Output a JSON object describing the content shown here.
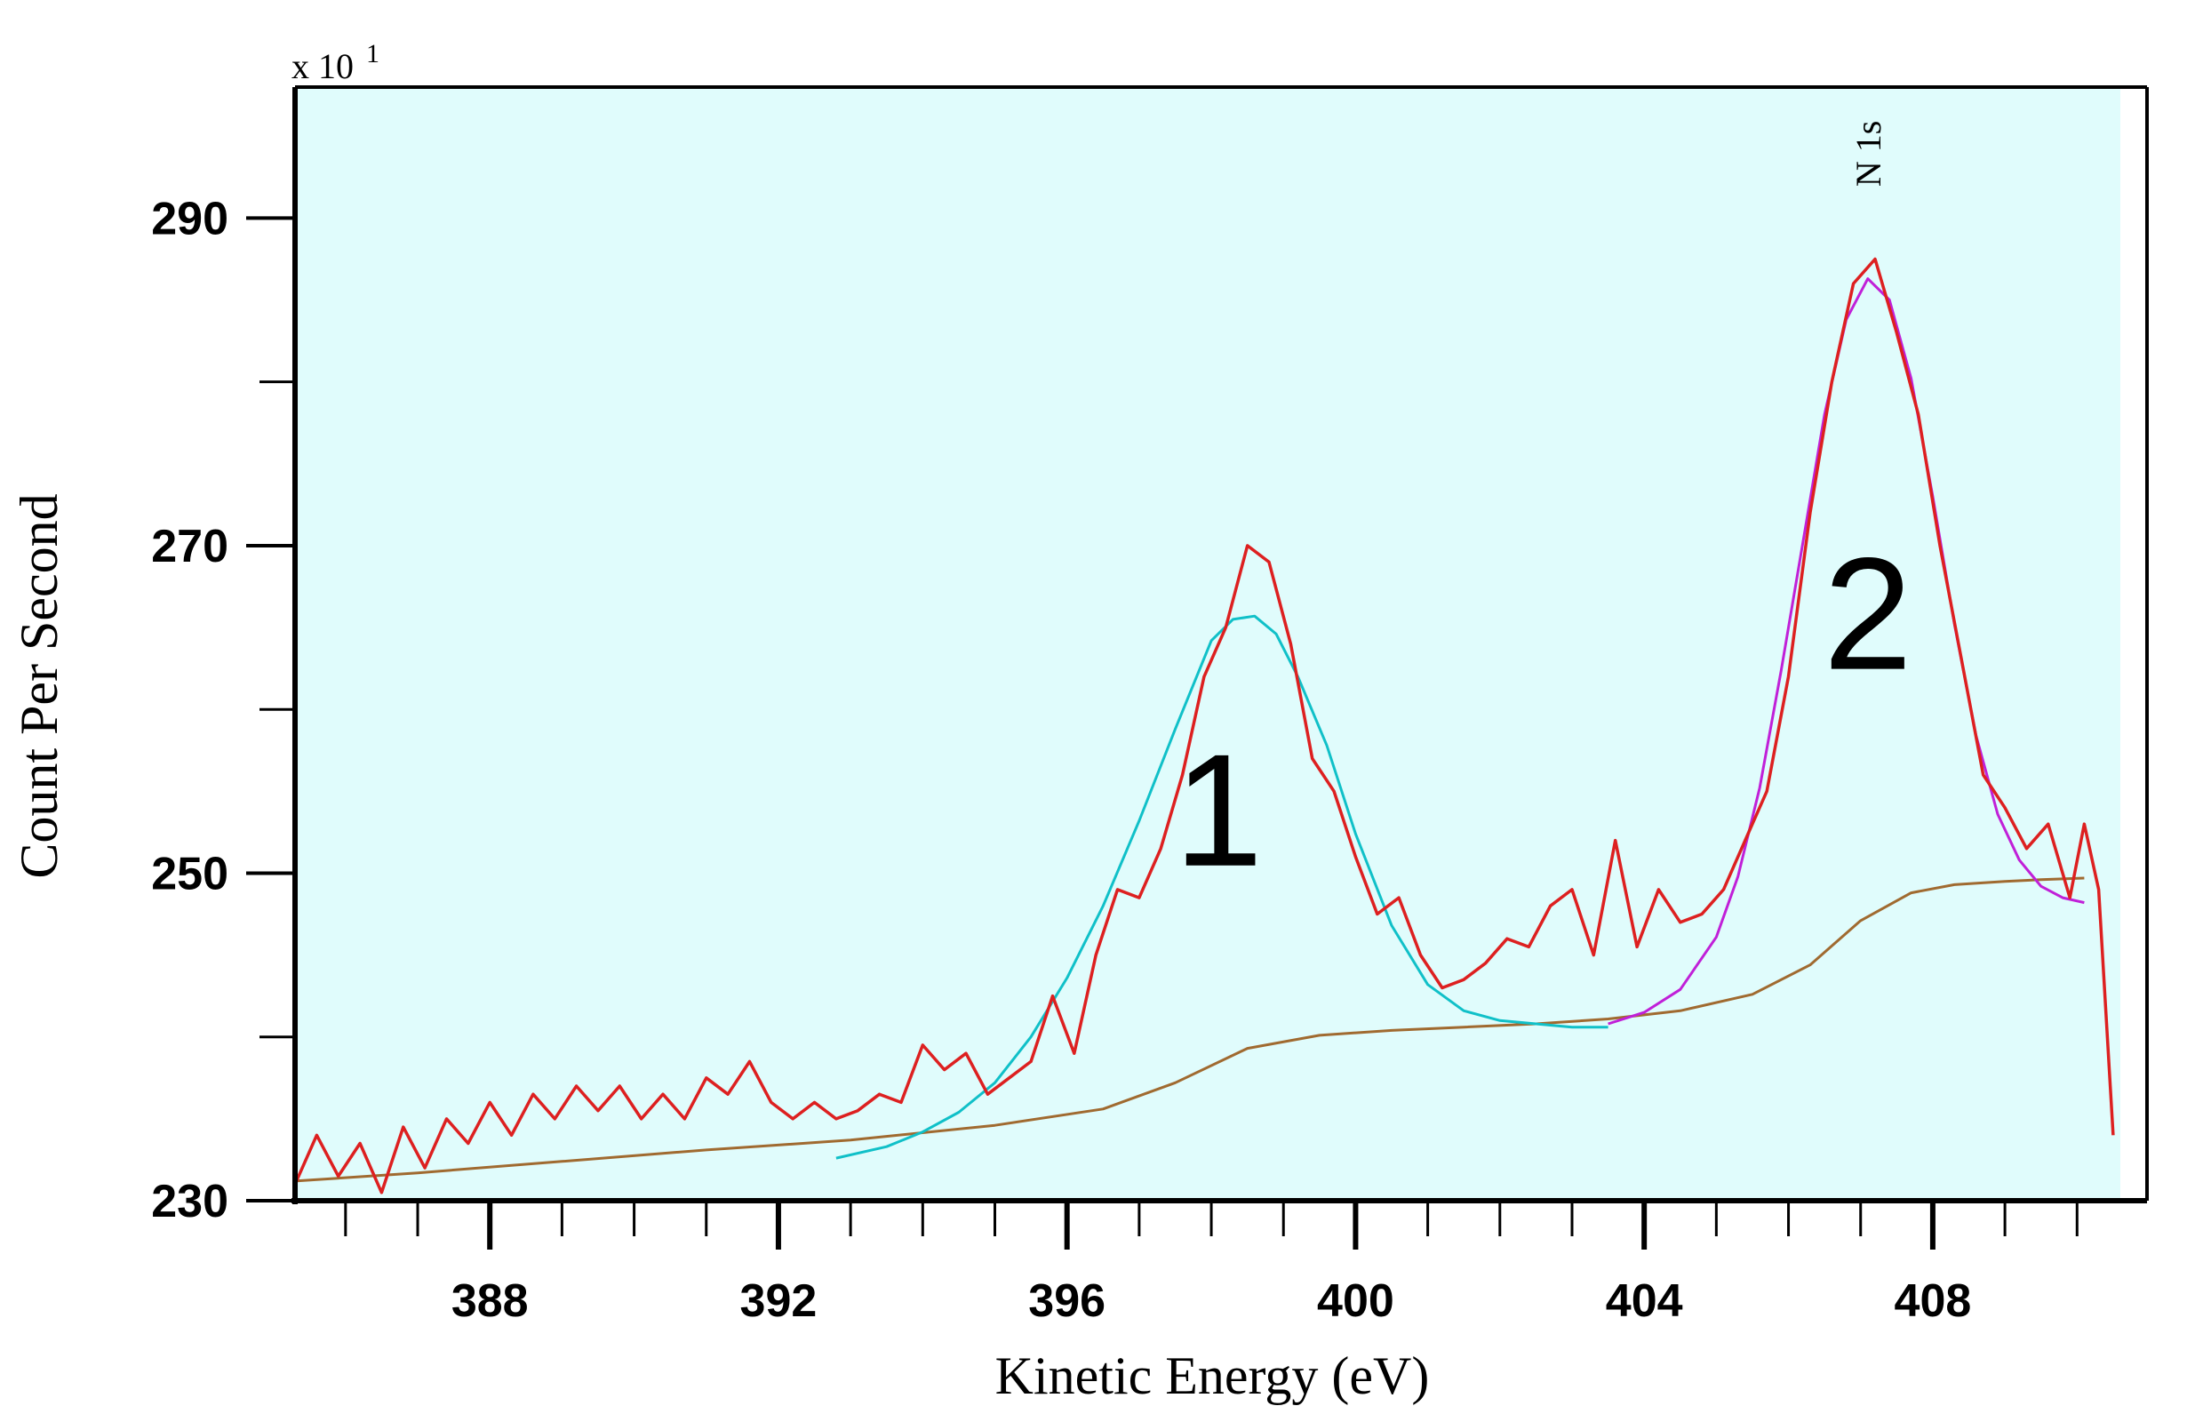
{
  "chart_data": {
    "type": "line",
    "xlabel": "Kinetic Energy (eV)",
    "ylabel": "Count Per Second",
    "y_scale_label": "x 10",
    "y_scale_exponent": "1",
    "xlim": [
      385.3,
      410.6
    ],
    "ylim": [
      230,
      298
    ],
    "x_ticks": [
      388,
      392,
      396,
      400,
      404,
      408
    ],
    "x_tick_labels": [
      "388",
      "392",
      "396",
      "400",
      "404",
      "408"
    ],
    "y_ticks": [
      230,
      250,
      270,
      290
    ],
    "y_tick_labels": [
      "230",
      "250",
      "270",
      "290"
    ],
    "grid": false,
    "background": "#e0fcfc",
    "annotations": [
      {
        "text": "1",
        "x": 398.1,
        "y": 254
      },
      {
        "text": "2",
        "x": 407.1,
        "y": 266
      },
      {
        "text": "N 1s",
        "x": 407.1,
        "y": 293
      }
    ],
    "series": [
      {
        "color": "#dd2020",
        "x": [
          385.3,
          385.6,
          385.9,
          386.2,
          386.5,
          386.8,
          387.1,
          387.4,
          387.7,
          388.0,
          388.3,
          388.6,
          388.9,
          389.2,
          389.5,
          389.8,
          390.1,
          390.4,
          390.7,
          391.0,
          391.3,
          391.6,
          391.9,
          392.2,
          392.5,
          392.8,
          393.1,
          393.4,
          393.7,
          394.0,
          394.3,
          394.6,
          394.9,
          395.2,
          395.5,
          395.8,
          396.1,
          396.4,
          396.7,
          397.0,
          397.3,
          397.6,
          397.9,
          398.2,
          398.5,
          398.8,
          399.1,
          399.4,
          399.7,
          400.0,
          400.3,
          400.6,
          400.9,
          401.2,
          401.5,
          401.8,
          402.1,
          402.4,
          402.7,
          403.0,
          403.3,
          403.6,
          403.9,
          404.2,
          404.5,
          404.8,
          405.1,
          405.4,
          405.7,
          406.0,
          406.3,
          406.6,
          406.9,
          407.2,
          407.5,
          407.8,
          408.1,
          408.4,
          408.7,
          409.0,
          409.3,
          409.6,
          409.9,
          410.1,
          410.3,
          410.5
        ],
        "y": [
          231,
          234,
          231.5,
          233.5,
          230.5,
          234.5,
          232,
          235,
          233.5,
          236,
          234,
          236.5,
          235,
          237,
          235.5,
          237,
          235,
          236.5,
          235,
          237.5,
          236.5,
          238.5,
          236,
          235,
          236,
          235,
          235.5,
          236.5,
          236,
          239.5,
          238,
          239,
          236.5,
          237.5,
          238.5,
          242.5,
          239,
          245,
          249,
          248.5,
          251.5,
          256,
          262,
          265,
          270,
          269,
          264,
          257,
          255,
          251,
          247.5,
          248.5,
          245,
          243,
          243.5,
          244.5,
          246,
          245.5,
          248,
          249,
          245,
          252,
          245.5,
          249,
          247,
          247.5,
          249,
          252,
          255,
          262,
          272,
          280,
          286,
          287.5,
          283,
          278,
          270,
          263,
          256,
          254,
          251.5,
          253,
          248.5,
          253,
          249,
          234
        ]
      },
      {
        "color": "#10c0c8",
        "x": [
          392.8,
          393.5,
          394.0,
          394.5,
          395.0,
          395.5,
          396.0,
          396.5,
          397.0,
          397.5,
          398.0,
          398.3,
          398.6,
          398.9,
          399.2,
          399.6,
          400.0,
          400.5,
          401.0,
          401.5,
          402.0,
          402.5,
          403.0,
          403.5
        ],
        "y": [
          232.6,
          233.3,
          234.2,
          235.4,
          237.2,
          240.0,
          243.6,
          248.0,
          253.2,
          258.8,
          264.2,
          265.5,
          265.7,
          264.6,
          262.0,
          257.8,
          252.4,
          246.8,
          243.2,
          241.6,
          241.0,
          240.8,
          240.6,
          240.6
        ]
      },
      {
        "color": "#c020d8",
        "x": [
          403.5,
          404.0,
          404.5,
          405.0,
          405.3,
          405.6,
          405.9,
          406.2,
          406.5,
          406.8,
          407.1,
          407.4,
          407.7,
          408.0,
          408.3,
          408.6,
          408.9,
          409.2,
          409.5,
          409.8,
          410.1
        ],
        "y": [
          240.8,
          241.5,
          242.9,
          246.1,
          249.8,
          255.2,
          262.4,
          270.2,
          278.0,
          283.8,
          286.3,
          285.0,
          280.2,
          273.0,
          265.2,
          258.4,
          253.6,
          250.8,
          249.2,
          248.5,
          248.2
        ]
      },
      {
        "color": "#a06a30",
        "x": [
          385.3,
          387.0,
          389.0,
          391.0,
          393.0,
          395.0,
          396.5,
          397.5,
          398.5,
          399.5,
          400.5,
          401.5,
          402.5,
          403.5,
          404.5,
          405.5,
          406.3,
          407.0,
          407.7,
          408.3,
          409.0,
          409.5,
          410.1
        ],
        "y": [
          231.2,
          231.7,
          232.4,
          233.1,
          233.7,
          234.6,
          235.6,
          237.2,
          239.3,
          240.1,
          240.4,
          240.6,
          240.8,
          241.1,
          241.6,
          242.6,
          244.4,
          247.1,
          248.8,
          249.3,
          249.5,
          249.6,
          249.7
        ]
      }
    ]
  }
}
